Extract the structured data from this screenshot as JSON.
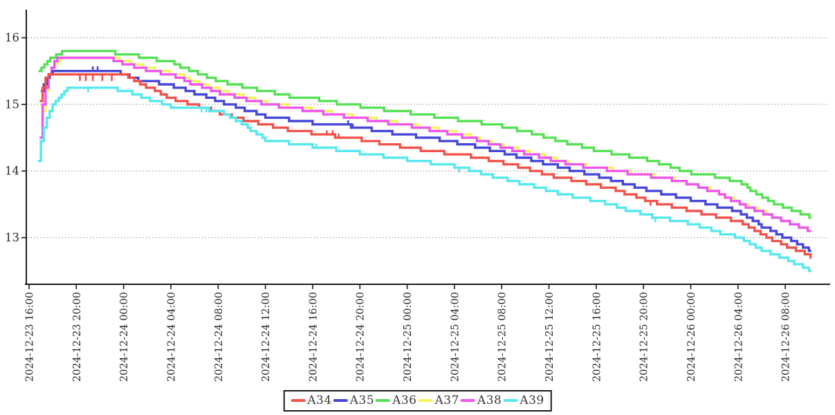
{
  "chart_data": {
    "type": "line",
    "subtype": "step-after",
    "title": "",
    "xlabel": "",
    "ylabel": "",
    "grid": "horizontal-dashed",
    "legend_position": "bottom-center",
    "axis_color": "#1a1a1a",
    "grid_color": "#8a8a8a",
    "text_color": "#2b2b2b",
    "x_axis": {
      "tick_interval_hours": 4,
      "tick_labels": [
        "2024-12-23 16:00",
        "2024-12-23 20:00",
        "2024-12-24 00:00",
        "2024-12-24 04:00",
        "2024-12-24 08:00",
        "2024-12-24 12:00",
        "2024-12-24 16:00",
        "2024-12-24 20:00",
        "2024-12-25 00:00",
        "2024-12-25 04:00",
        "2024-12-25 08:00",
        "2024-12-25 12:00",
        "2024-12-25 16:00",
        "2024-12-25 20:00",
        "2024-12-26 00:00",
        "2024-12-26 04:00",
        "2024-12-26 08:00"
      ],
      "data_start_hours": 0.75,
      "data_end_hours": 66.2
    },
    "y_axis": {
      "ticks": [
        16,
        15,
        14,
        13
      ],
      "range_displayed": [
        12.3,
        16.42
      ]
    },
    "value_step": 0.05,
    "series": [
      {
        "name": "A34",
        "color": "#f0524a",
        "points": [
          [
            0.9,
            15.05
          ],
          [
            1.1,
            15.25
          ],
          [
            1.5,
            15.42
          ],
          [
            2.2,
            15.45
          ],
          [
            3.5,
            15.47
          ],
          [
            7.0,
            15.45
          ],
          [
            8.5,
            15.42
          ],
          [
            9.5,
            15.3
          ],
          [
            10.5,
            15.22
          ],
          [
            12,
            15.09
          ],
          [
            14,
            14.99
          ],
          [
            16,
            14.88
          ],
          [
            18,
            14.78
          ],
          [
            20,
            14.7
          ],
          [
            22,
            14.62
          ],
          [
            24,
            14.57
          ],
          [
            26,
            14.52
          ],
          [
            28,
            14.48
          ],
          [
            30,
            14.41
          ],
          [
            32,
            14.35
          ],
          [
            34,
            14.3
          ],
          [
            36,
            14.25
          ],
          [
            38,
            14.21
          ],
          [
            40,
            14.13
          ],
          [
            42,
            14.04
          ],
          [
            44,
            13.93
          ],
          [
            46,
            13.87
          ],
          [
            48,
            13.79
          ],
          [
            50,
            13.7
          ],
          [
            52,
            13.57
          ],
          [
            54,
            13.49
          ],
          [
            56,
            13.41
          ],
          [
            58,
            13.33
          ],
          [
            60,
            13.25
          ],
          [
            62,
            13.05
          ],
          [
            64,
            12.88
          ],
          [
            66.2,
            12.72
          ]
        ]
      },
      {
        "name": "A35",
        "color": "#4646d8",
        "points": [
          [
            1.0,
            15.18
          ],
          [
            1.3,
            15.35
          ],
          [
            1.8,
            15.48
          ],
          [
            3.0,
            15.5
          ],
          [
            7.0,
            15.5
          ],
          [
            8.0,
            15.45
          ],
          [
            9.0,
            15.38
          ],
          [
            10,
            15.35
          ],
          [
            12,
            15.29
          ],
          [
            14,
            15.17
          ],
          [
            16,
            15.05
          ],
          [
            18,
            14.94
          ],
          [
            20,
            14.82
          ],
          [
            22,
            14.77
          ],
          [
            24,
            14.72
          ],
          [
            26,
            14.7
          ],
          [
            28,
            14.65
          ],
          [
            30,
            14.59
          ],
          [
            32,
            14.54
          ],
          [
            34,
            14.49
          ],
          [
            36,
            14.43
          ],
          [
            38,
            14.36
          ],
          [
            40,
            14.28
          ],
          [
            42,
            14.19
          ],
          [
            44,
            14.1
          ],
          [
            46,
            14.01
          ],
          [
            48,
            13.93
          ],
          [
            50,
            13.83
          ],
          [
            52,
            13.73
          ],
          [
            54,
            13.65
          ],
          [
            56,
            13.57
          ],
          [
            58,
            13.48
          ],
          [
            60,
            13.4
          ],
          [
            62,
            13.17
          ],
          [
            64,
            13.0
          ],
          [
            66.2,
            12.8
          ]
        ]
      },
      {
        "name": "A36",
        "color": "#55e055",
        "points": [
          [
            0.8,
            15.5
          ],
          [
            1.2,
            15.58
          ],
          [
            1.8,
            15.68
          ],
          [
            2.4,
            15.75
          ],
          [
            3.0,
            15.8
          ],
          [
            6.0,
            15.8
          ],
          [
            8.0,
            15.76
          ],
          [
            10,
            15.7
          ],
          [
            12,
            15.63
          ],
          [
            14,
            15.48
          ],
          [
            16,
            15.35
          ],
          [
            18,
            15.27
          ],
          [
            20,
            15.2
          ],
          [
            22,
            15.12
          ],
          [
            24,
            15.09
          ],
          [
            26,
            15.02
          ],
          [
            28,
            14.97
          ],
          [
            30,
            14.92
          ],
          [
            32,
            14.88
          ],
          [
            34,
            14.83
          ],
          [
            36,
            14.78
          ],
          [
            38,
            14.73
          ],
          [
            40,
            14.67
          ],
          [
            42,
            14.59
          ],
          [
            44,
            14.5
          ],
          [
            46,
            14.4
          ],
          [
            48,
            14.31
          ],
          [
            50,
            14.25
          ],
          [
            52,
            14.18
          ],
          [
            54,
            14.08
          ],
          [
            56,
            13.97
          ],
          [
            58,
            13.92
          ],
          [
            60,
            13.85
          ],
          [
            62,
            13.6
          ],
          [
            64,
            13.45
          ],
          [
            66.2,
            13.3
          ]
        ]
      },
      {
        "name": "A37",
        "color": "#f5f55a",
        "points": [
          [
            0.9,
            14.52
          ],
          [
            1.3,
            15.12
          ],
          [
            1.7,
            15.47
          ],
          [
            2.1,
            15.61
          ],
          [
            2.6,
            15.71
          ],
          [
            7.2,
            15.7
          ],
          [
            8.7,
            15.61
          ],
          [
            10.7,
            15.52
          ],
          [
            12.7,
            15.44
          ],
          [
            14.7,
            15.3
          ],
          [
            16.7,
            15.18
          ],
          [
            18.7,
            15.09
          ],
          [
            20.7,
            15.0
          ],
          [
            22.7,
            14.95
          ],
          [
            24.7,
            14.9
          ],
          [
            26.7,
            14.84
          ],
          [
            28.7,
            14.79
          ],
          [
            30.7,
            14.73
          ],
          [
            32.7,
            14.68
          ],
          [
            34.7,
            14.62
          ],
          [
            36.7,
            14.55
          ],
          [
            38.4,
            14.46
          ],
          [
            40.4,
            14.36
          ],
          [
            42.4,
            14.27
          ],
          [
            44.4,
            14.18
          ],
          [
            46.4,
            14.09
          ],
          [
            48.4,
            14.05
          ],
          [
            50.2,
            13.99
          ],
          [
            52.2,
            13.94
          ],
          [
            54.2,
            13.89
          ],
          [
            56.2,
            13.8
          ],
          [
            58.1,
            13.69
          ],
          [
            60.1,
            13.52
          ],
          [
            62.1,
            13.38
          ],
          [
            64.1,
            13.24
          ],
          [
            66.2,
            13.1
          ]
        ]
      },
      {
        "name": "A38",
        "color": "#ee55ee",
        "points": [
          [
            0.9,
            14.5
          ],
          [
            1.2,
            15.1
          ],
          [
            1.6,
            15.45
          ],
          [
            2.0,
            15.6
          ],
          [
            2.5,
            15.71
          ],
          [
            6.5,
            15.7
          ],
          [
            8.0,
            15.61
          ],
          [
            10,
            15.52
          ],
          [
            12,
            15.44
          ],
          [
            14,
            15.3
          ],
          [
            16,
            15.18
          ],
          [
            18,
            15.09
          ],
          [
            20,
            15.0
          ],
          [
            22,
            14.95
          ],
          [
            24,
            14.9
          ],
          [
            26,
            14.84
          ],
          [
            28,
            14.79
          ],
          [
            30,
            14.73
          ],
          [
            32,
            14.68
          ],
          [
            34,
            14.62
          ],
          [
            36,
            14.55
          ],
          [
            38,
            14.46
          ],
          [
            40,
            14.36
          ],
          [
            42,
            14.27
          ],
          [
            44,
            14.18
          ],
          [
            46,
            14.09
          ],
          [
            48,
            14.05
          ],
          [
            50,
            13.99
          ],
          [
            52,
            13.94
          ],
          [
            54,
            13.89
          ],
          [
            56,
            13.8
          ],
          [
            58,
            13.69
          ],
          [
            60,
            13.52
          ],
          [
            62,
            13.38
          ],
          [
            64,
            13.24
          ],
          [
            66.2,
            13.1
          ]
        ]
      },
      {
        "name": "A39",
        "color": "#55e8ee",
        "points": [
          [
            0.75,
            14.17
          ],
          [
            1.0,
            14.45
          ],
          [
            1.4,
            14.75
          ],
          [
            1.9,
            14.95
          ],
          [
            2.4,
            15.1
          ],
          [
            3.0,
            15.2
          ],
          [
            3.6,
            15.27
          ],
          [
            6.0,
            15.25
          ],
          [
            8.0,
            15.21
          ],
          [
            9.5,
            15.12
          ],
          [
            12,
            14.97
          ],
          [
            14,
            14.96
          ],
          [
            16,
            14.9
          ],
          [
            18,
            14.71
          ],
          [
            20,
            14.47
          ],
          [
            22,
            14.42
          ],
          [
            24,
            14.37
          ],
          [
            26,
            14.32
          ],
          [
            28,
            14.27
          ],
          [
            30,
            14.22
          ],
          [
            32,
            14.17
          ],
          [
            34,
            14.12
          ],
          [
            36,
            14.07
          ],
          [
            38,
            13.98
          ],
          [
            40,
            13.89
          ],
          [
            42,
            13.8
          ],
          [
            44,
            13.7
          ],
          [
            46,
            13.62
          ],
          [
            48,
            13.55
          ],
          [
            50,
            13.45
          ],
          [
            52,
            13.35
          ],
          [
            54,
            13.28
          ],
          [
            56,
            13.21
          ],
          [
            58,
            13.1
          ],
          [
            60,
            13.0
          ],
          [
            62,
            12.82
          ],
          [
            64,
            12.68
          ],
          [
            66.2,
            12.5
          ]
        ]
      }
    ],
    "glitches": [
      {
        "series": "A34",
        "t": 4.3,
        "dv": -0.1
      },
      {
        "series": "A34",
        "t": 4.8,
        "dv": -0.1
      },
      {
        "series": "A34",
        "t": 5.4,
        "dv": -0.1
      },
      {
        "series": "A34",
        "t": 6.2,
        "dv": -0.1
      },
      {
        "series": "A34",
        "t": 7.0,
        "dv": -0.1
      },
      {
        "series": "A34",
        "t": 25.2,
        "dv": 0.06
      },
      {
        "series": "A34",
        "t": 25.7,
        "dv": 0.06
      },
      {
        "series": "A34",
        "t": 26.2,
        "dv": 0.06
      },
      {
        "series": "A34",
        "t": 52.6,
        "dv": -0.07
      },
      {
        "series": "A35",
        "t": 5.4,
        "dv": 0.07
      },
      {
        "series": "A35",
        "t": 5.8,
        "dv": 0.07
      },
      {
        "series": "A35",
        "t": 27.0,
        "dv": 0.06
      },
      {
        "series": "A35",
        "t": 27.4,
        "dv": 0.06
      },
      {
        "series": "A39",
        "t": 5.0,
        "dv": -0.07
      },
      {
        "series": "A39",
        "t": 14.6,
        "dv": -0.07
      },
      {
        "series": "A39",
        "t": 15.0,
        "dv": -0.07
      },
      {
        "series": "A39",
        "t": 24.3,
        "dv": 0.06
      },
      {
        "series": "A39",
        "t": 36.4,
        "dv": -0.07
      },
      {
        "series": "A39",
        "t": 52.7,
        "dv": -0.07
      },
      {
        "series": "A39",
        "t": 53.0,
        "dv": -0.07
      }
    ]
  },
  "legend": {
    "items": [
      "A34",
      "A35",
      "A36",
      "A37",
      "A38",
      "A39"
    ]
  }
}
